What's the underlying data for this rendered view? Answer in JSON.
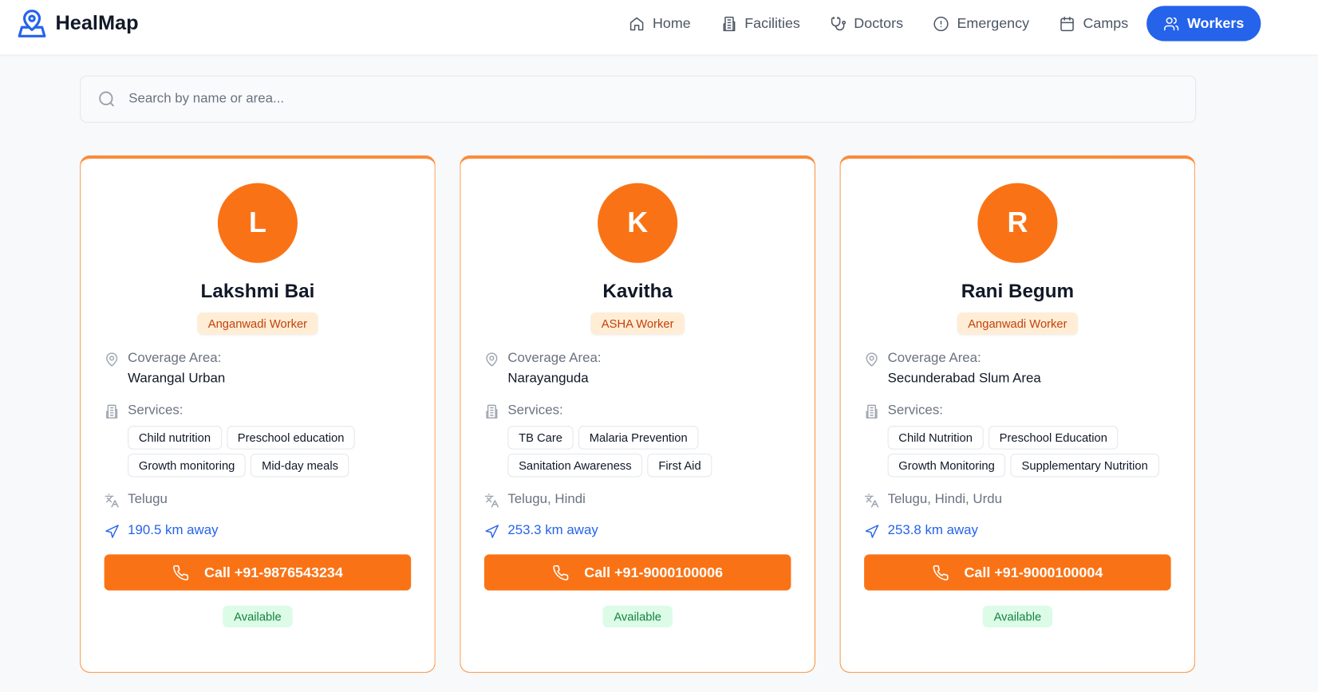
{
  "app": {
    "name": "HealMap",
    "brand_color": "#2563eb",
    "accent_color": "#f97316"
  },
  "nav": [
    {
      "label": "Home",
      "icon": "home-icon"
    },
    {
      "label": "Facilities",
      "icon": "building-icon"
    },
    {
      "label": "Doctors",
      "icon": "stethoscope-icon"
    },
    {
      "label": "Emergency",
      "icon": "alert-circle-icon"
    },
    {
      "label": "Camps",
      "icon": "calendar-icon"
    },
    {
      "label": "Workers",
      "icon": "users-icon",
      "active": true
    }
  ],
  "search": {
    "placeholder": "Search by name or area..."
  },
  "labels": {
    "coverage": "Coverage Area:",
    "services": "Services:"
  },
  "workers": [
    {
      "initial": "L",
      "name": "Lakshmi Bai",
      "role": "Anganwadi Worker",
      "area": "Warangal Urban",
      "services": [
        "Child nutrition",
        "Preschool education",
        "Growth monitoring",
        "Mid-day meals"
      ],
      "languages": "Telugu",
      "distance": "190.5 km away",
      "call": "Call +91-9876543234",
      "status": "Available"
    },
    {
      "initial": "K",
      "name": "Kavitha",
      "role": "ASHA Worker",
      "area": "Narayanguda",
      "services": [
        "TB Care",
        "Malaria Prevention",
        "Sanitation Awareness",
        "First Aid"
      ],
      "languages": "Telugu, Hindi",
      "distance": "253.3 km away",
      "call": "Call +91-9000100006",
      "status": "Available"
    },
    {
      "initial": "R",
      "name": "Rani Begum",
      "role": "Anganwadi Worker",
      "area": "Secunderabad Slum Area",
      "services": [
        "Child Nutrition",
        "Preschool Education",
        "Growth Monitoring",
        "Supplementary Nutrition"
      ],
      "languages": "Telugu, Hindi, Urdu",
      "distance": "253.8 km away",
      "call": "Call +91-9000100004",
      "status": "Available"
    }
  ]
}
